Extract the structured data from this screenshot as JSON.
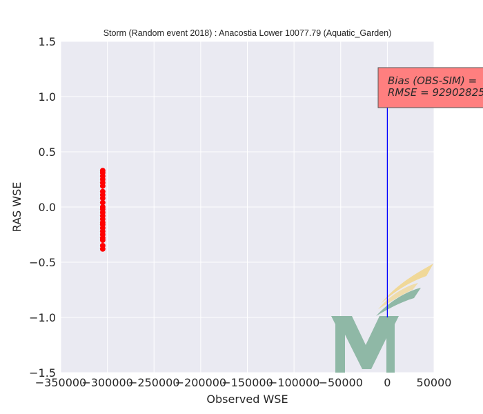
{
  "chart_data": {
    "type": "scatter",
    "title": "Storm (Random event 2018) : Anacostia Lower 10077.79 (Aquatic_Garden)",
    "xlabel": "Observed WSE",
    "ylabel": "RAS WSE",
    "xlim": [
      -350000,
      50000
    ],
    "ylim": [
      -1.5,
      1.5
    ],
    "xticks": [
      -350000,
      -300000,
      -250000,
      -200000,
      -150000,
      -100000,
      -50000,
      0,
      50000
    ],
    "xtick_labels": [
      "−350000",
      "−300000",
      "−250000",
      "−200000",
      "−150000",
      "−100000",
      "−50000",
      "0",
      "50000"
    ],
    "yticks": [
      -1.5,
      -1.0,
      -0.5,
      0.0,
      0.5,
      1.0,
      1.5
    ],
    "ytick_labels": [
      "−1.5",
      "−1.0",
      "−0.5",
      "0.0",
      "0.5",
      "1.0",
      "1.5"
    ],
    "grid": true,
    "background": "#eaeaf2",
    "series": [
      {
        "type": "scatter",
        "color": "#ff0000",
        "x": [
          -305000,
          -305000,
          -305000,
          -305000,
          -305000,
          -305000,
          -305000,
          -305000,
          -305000,
          -305000,
          -305000,
          -305000,
          -305000,
          -305000,
          -305000,
          -305000,
          -305000,
          -305000,
          -305000,
          -305000,
          -305000,
          -305000,
          -305000,
          -305000
        ],
        "y": [
          0.33,
          0.31,
          0.28,
          0.25,
          0.22,
          0.19,
          0.14,
          0.11,
          0.08,
          0.04,
          0.0,
          -0.02,
          -0.05,
          -0.08,
          -0.11,
          -0.14,
          -0.16,
          -0.19,
          -0.22,
          -0.25,
          -0.28,
          -0.3,
          -0.35,
          -0.38
        ]
      },
      {
        "type": "line",
        "color": "#0000ff",
        "x": [
          0,
          0
        ],
        "y": [
          -1.0,
          1.0
        ]
      }
    ],
    "annotation": {
      "lines": [
        "Bias (OBS-SIM) =",
        "RMSE = 92902825"
      ],
      "background": "#ff7f7f",
      "border": "#555555"
    },
    "watermark": {
      "letter": "M",
      "letter_color": "#8fb8a6",
      "leaf_color_1": "#f0d898",
      "leaf_color_2": "#8fb8a6"
    }
  }
}
